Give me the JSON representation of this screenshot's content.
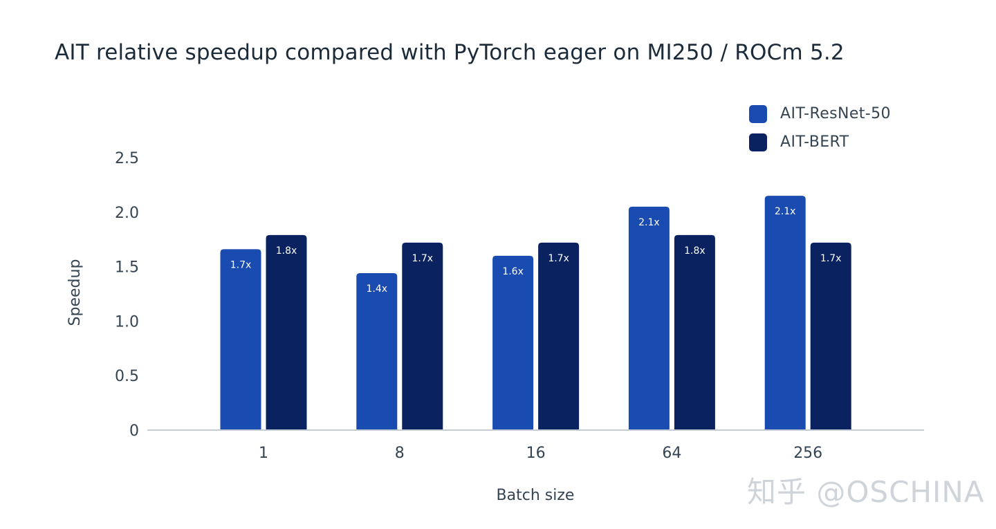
{
  "chart_data": {
    "type": "bar",
    "title": "AIT relative speedup compared with PyTorch eager on MI250 / ROCm 5.2",
    "xlabel": "Batch size",
    "ylabel": "Speedup",
    "categories": [
      "1",
      "8",
      "16",
      "64",
      "256"
    ],
    "y_ticks": [
      "0",
      "0.5",
      "1.0",
      "1.5",
      "2.0",
      "2.5"
    ],
    "ylim": [
      0,
      2.5
    ],
    "grid": false,
    "legend_position": "top-right",
    "series": [
      {
        "name": "AIT-ResNet-50",
        "color": "#1a4bb0",
        "values": [
          1.66,
          1.44,
          1.6,
          2.05,
          2.15
        ],
        "labels": [
          "1.7x",
          "1.4x",
          "1.6x",
          "2.1x",
          "2.1x"
        ]
      },
      {
        "name": "AIT-BERT",
        "color": "#0a2260",
        "values": [
          1.79,
          1.72,
          1.72,
          1.79,
          1.72
        ],
        "labels": [
          "1.8x",
          "1.7x",
          "1.7x",
          "1.8x",
          "1.7x"
        ]
      }
    ]
  },
  "watermark": "知乎 @OSCHINA"
}
